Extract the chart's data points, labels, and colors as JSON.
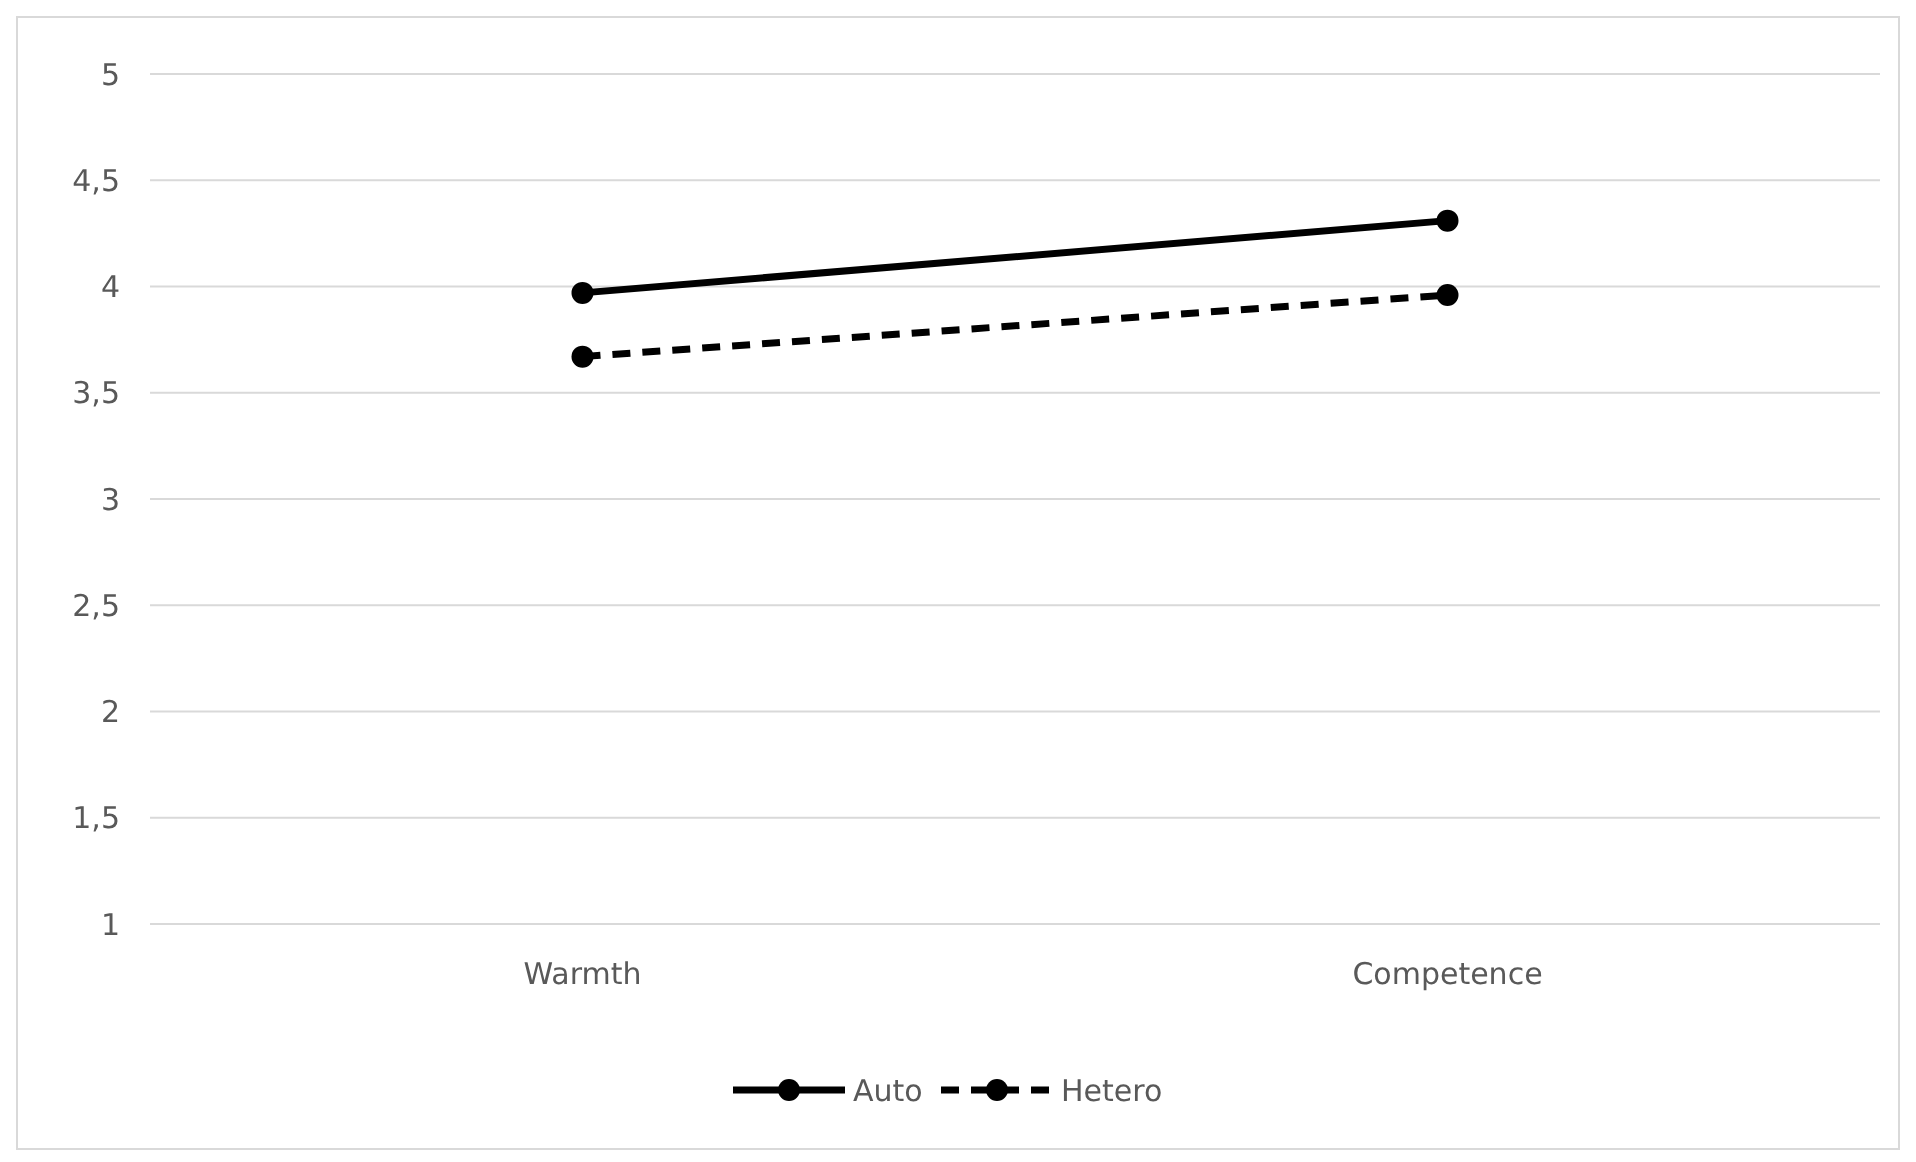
{
  "chart_data": {
    "type": "line",
    "categories": [
      "Warmth",
      "Competence"
    ],
    "series": [
      {
        "name": "Auto",
        "color": "#000000",
        "values": [
          3.97,
          4.31
        ],
        "line_style": "solid"
      },
      {
        "name": "Hetero",
        "color": "#000000",
        "values": [
          3.67,
          3.96
        ],
        "line_style": "dashed"
      }
    ],
    "ylim": [
      1,
      5
    ],
    "yticks": [
      1,
      {
        "value": 1.5,
        "label": "1,5"
      },
      2,
      {
        "value": 2.5,
        "label": "2,5"
      },
      3,
      {
        "value": 3.5,
        "label": "3,5"
      },
      4,
      {
        "value": 4.5,
        "label": "4,5"
      },
      5
    ],
    "grid": "y",
    "legend": "bottom",
    "marker": "circle"
  }
}
